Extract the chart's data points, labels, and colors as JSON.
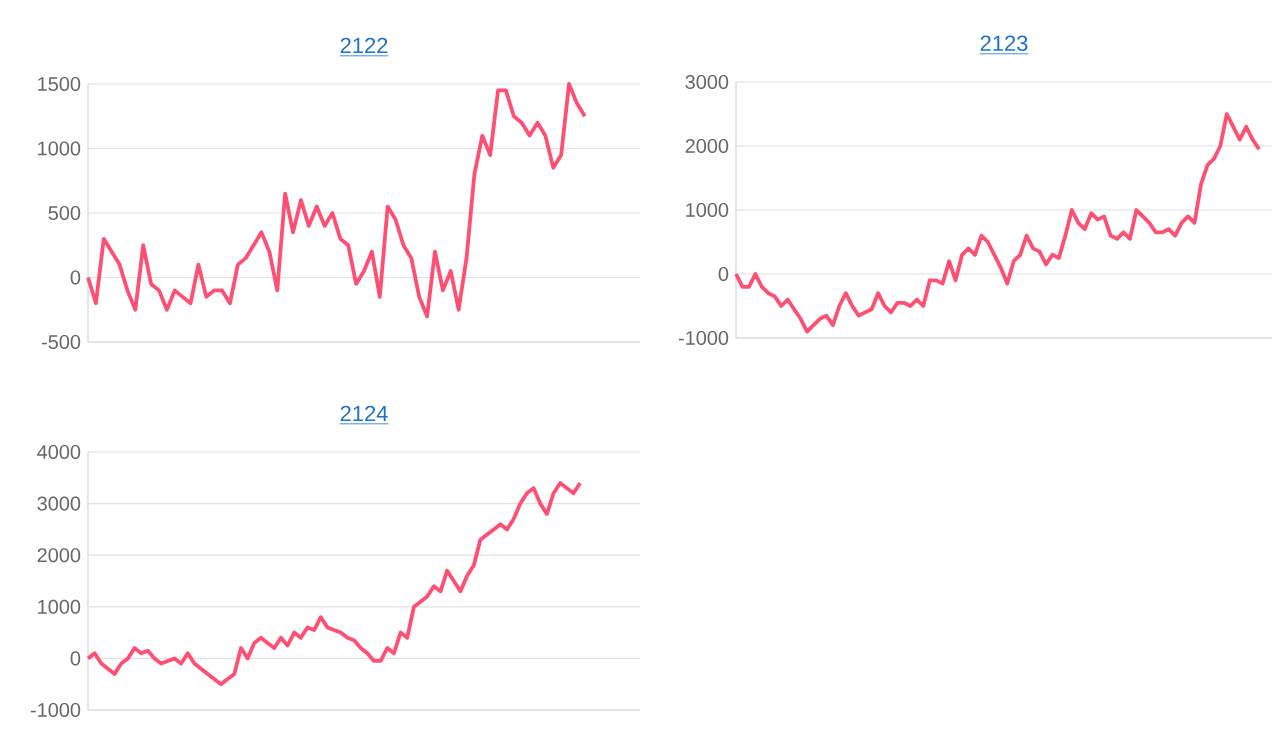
{
  "chart_data": [
    {
      "type": "line",
      "title": "2122",
      "color": "#ff5073",
      "grid": "y",
      "ylim": [
        -500,
        1500
      ],
      "yticks": [
        -500,
        0,
        500,
        1000,
        1500
      ],
      "categories": [
        null,
        null,
        null,
        null,
        null,
        null,
        null,
        null,
        null,
        null,
        null,
        null,
        null,
        null,
        null,
        null,
        null,
        null,
        null,
        null,
        null,
        null,
        null,
        null,
        null,
        null,
        null,
        null,
        null,
        null,
        null,
        null,
        null,
        null,
        null,
        null,
        null,
        null,
        null,
        null,
        null,
        null,
        null,
        null,
        null,
        null,
        null,
        null,
        null,
        null,
        null,
        null,
        null,
        null,
        null,
        null,
        null,
        null,
        null,
        null,
        null,
        null,
        null,
        null,
        null,
        null,
        null,
        null,
        null,
        null,
        null
      ],
      "values": [
        0,
        -200,
        300,
        200,
        100,
        -100,
        -250,
        250,
        -50,
        -100,
        -250,
        -100,
        -150,
        -200,
        100,
        -150,
        -100,
        -100,
        -200,
        100,
        150,
        250,
        350,
        200,
        -100,
        650,
        350,
        600,
        400,
        550,
        400,
        500,
        300,
        250,
        -50,
        50,
        200,
        -150,
        550,
        450,
        250,
        150,
        -150,
        -300,
        200,
        -100,
        50,
        -250,
        150,
        800,
        1100,
        950,
        1450,
        1450,
        1250,
        1200,
        1100,
        1200,
        1100,
        850,
        950,
        1500,
        1350,
        1250,
        null,
        null,
        null,
        null,
        null,
        null,
        null
      ]
    },
    {
      "type": "line",
      "title": "2123",
      "color": "#ff5073",
      "grid": "y",
      "ylim": [
        -1000,
        3000
      ],
      "yticks": [
        -1000,
        0,
        1000,
        2000,
        3000
      ],
      "categories": [
        null,
        null,
        null,
        null,
        null,
        null,
        null,
        null,
        null,
        null,
        null,
        null,
        null,
        null,
        null,
        null,
        null,
        null,
        null,
        null,
        null,
        null,
        null,
        null,
        null,
        null,
        null,
        null,
        null,
        null,
        null,
        null,
        null,
        null,
        null,
        null,
        null,
        null,
        null,
        null,
        null,
        null,
        null,
        null,
        null,
        null,
        null,
        null,
        null,
        null,
        null,
        null,
        null,
        null,
        null,
        null,
        null,
        null,
        null,
        null,
        null,
        null,
        null,
        null,
        null,
        null,
        null,
        null,
        null,
        null,
        null,
        null,
        null,
        null,
        null,
        null,
        null,
        null,
        null,
        null,
        null,
        null,
        null,
        null
      ],
      "values": [
        0,
        -200,
        -200,
        0,
        -200,
        -300,
        -350,
        -500,
        -400,
        -550,
        -700,
        -900,
        -800,
        -700,
        -650,
        -800,
        -500,
        -300,
        -500,
        -650,
        -600,
        -550,
        -300,
        -500,
        -600,
        -450,
        -450,
        -500,
        -400,
        -500,
        -100,
        -100,
        -150,
        200,
        -100,
        300,
        400,
        300,
        600,
        500,
        300,
        100,
        -150,
        200,
        300,
        600,
        400,
        350,
        150,
        300,
        250,
        600,
        1000,
        800,
        700,
        950,
        850,
        900,
        600,
        550,
        650,
        550,
        1000,
        900,
        800,
        650,
        650,
        700,
        600,
        800,
        900,
        800,
        1400,
        1700,
        1800,
        2000,
        2500,
        2300,
        2100,
        2300,
        2100,
        1950,
        null,
        null
      ]
    },
    {
      "type": "line",
      "title": "2124",
      "color": "#ff5073",
      "grid": "y",
      "ylim": [
        -1000,
        4000
      ],
      "yticks": [
        -1000,
        0,
        1000,
        2000,
        3000,
        4000
      ],
      "categories": [
        null,
        null,
        null,
        null,
        null,
        null,
        null,
        null,
        null,
        null,
        null,
        null,
        null,
        null,
        null,
        null,
        null,
        null,
        null,
        null,
        null,
        null,
        null,
        null,
        null,
        null,
        null,
        null,
        null,
        null,
        null,
        null,
        null,
        null,
        null,
        null,
        null,
        null,
        null,
        null,
        null,
        null,
        null,
        null,
        null,
        null,
        null,
        null,
        null,
        null,
        null,
        null,
        null,
        null,
        null,
        null,
        null,
        null,
        null,
        null,
        null,
        null,
        null,
        null,
        null,
        null,
        null,
        null,
        null,
        null,
        null,
        null,
        null,
        null,
        null,
        null,
        null,
        null,
        null,
        null,
        null,
        null,
        null,
        null
      ],
      "values": [
        0,
        100,
        -100,
        -200,
        -300,
        -100,
        0,
        200,
        100,
        150,
        0,
        -100,
        -50,
        0,
        -100,
        100,
        -100,
        -200,
        -300,
        -400,
        -500,
        -400,
        -300,
        200,
        0,
        300,
        400,
        300,
        200,
        400,
        250,
        500,
        400,
        600,
        550,
        800,
        600,
        550,
        500,
        400,
        350,
        200,
        100,
        -50,
        -50,
        200,
        100,
        500,
        400,
        1000,
        1100,
        1200,
        1400,
        1300,
        1700,
        1500,
        1300,
        1600,
        1800,
        2300,
        2400,
        2500,
        2600,
        2500,
        2700,
        3000,
        3200,
        3300,
        3000,
        2800,
        3200,
        3400,
        3300,
        3200,
        3400,
        null,
        null,
        null,
        null,
        null,
        null,
        null,
        null,
        null
      ]
    }
  ]
}
